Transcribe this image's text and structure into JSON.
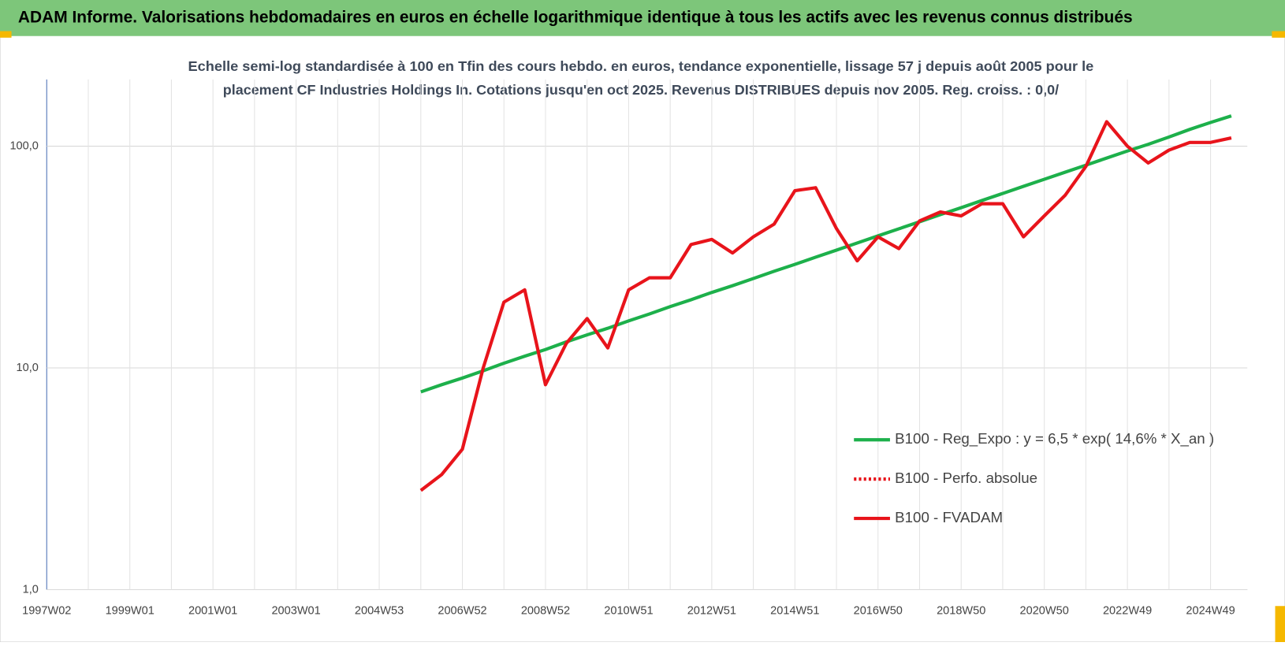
{
  "chart_data": {
    "type": "line",
    "header": "ADAM Informe. Valorisations hebdomadaires en euros en échelle logarithmique identique à tous les actifs avec les revenus connus distribués",
    "subtitle": [
      "Echelle semi-log standardisée à 100 en Tfin des cours hebdo. en euros, tendance exponentielle, lissage 57 j depuis août 2005 pour le",
      "placement CF Industries Holdings In. Cotations jusqu'en oct 2025.  Revenus DISTRIBUES depuis nov 2005. Reg. croiss. : 0,0/"
    ],
    "categories": [
      "1997W02",
      null,
      null,
      null,
      "1999W01",
      null,
      null,
      null,
      "2001W01",
      null,
      null,
      null,
      "2003W01",
      null,
      null,
      null,
      "2004W53",
      null,
      null,
      null,
      "2006W52",
      null,
      null,
      null,
      "2008W52",
      null,
      null,
      null,
      "2010W51",
      null,
      null,
      null,
      "2012W51",
      null,
      null,
      null,
      "2014W51",
      null,
      null,
      null,
      "2016W50",
      null,
      null,
      null,
      "2018W50",
      null,
      null,
      null,
      "2020W50",
      null,
      null,
      null,
      "2022W49",
      null,
      null,
      null,
      "2024W49",
      null
    ],
    "log_scale": true,
    "grid": true,
    "legend": "right",
    "ylim": [
      1,
      200
    ],
    "yticks": [
      {
        "value": 1,
        "label": "1,0"
      },
      {
        "value": 10,
        "label": "10,0"
      },
      {
        "value": 100,
        "label": "100,0"
      }
    ],
    "series": [
      {
        "name": "B100 - Reg_Expo : y = 6,5 * exp( 14,6% *  X_an )",
        "color": "#1db04b",
        "style": "solid",
        "values": [
          null,
          null,
          null,
          null,
          null,
          null,
          null,
          null,
          null,
          null,
          null,
          null,
          null,
          null,
          null,
          null,
          null,
          null,
          7.8,
          8.4,
          9.0,
          9.7,
          10.5,
          11.3,
          12.1,
          13.1,
          14.1,
          15.1,
          16.3,
          17.5,
          18.9,
          20.3,
          21.9,
          23.5,
          25.3,
          27.3,
          29.3,
          31.6,
          34.0,
          36.6,
          39.4,
          42.4,
          45.6,
          49.1,
          52.8,
          56.9,
          61.2,
          65.9,
          70.9,
          76.3,
          82.1,
          88.4,
          95.1,
          102,
          110,
          119,
          128,
          137
        ]
      },
      {
        "name": "B100 - Perfo. absolue",
        "color": "#e8141b",
        "style": "dotted",
        "values": [
          null,
          null,
          null,
          null,
          null,
          null,
          null,
          null,
          null,
          null,
          null,
          null,
          null,
          null,
          null,
          null,
          null,
          null,
          null,
          null,
          null,
          null,
          null,
          null,
          null,
          null,
          null,
          null,
          null,
          null,
          null,
          null,
          null,
          null,
          null,
          null,
          null,
          null,
          null,
          null,
          null,
          null,
          null,
          null,
          null,
          null,
          null,
          null,
          null,
          null,
          null,
          null,
          null,
          null,
          null,
          null,
          null,
          null
        ]
      },
      {
        "name": "B100 - FVADAM",
        "color": "#e8141b",
        "style": "solid",
        "values": [
          null,
          null,
          null,
          null,
          null,
          null,
          null,
          null,
          null,
          null,
          null,
          null,
          null,
          null,
          null,
          null,
          null,
          null,
          2.8,
          3.3,
          4.3,
          10,
          19.8,
          22.5,
          8.4,
          12.9,
          16.7,
          12.3,
          22.5,
          25.5,
          25.5,
          36,
          38,
          33,
          39,
          44.5,
          63,
          65,
          42.5,
          30.4,
          39,
          34.5,
          46,
          50.5,
          48.5,
          55,
          55,
          39,
          48.5,
          60,
          81,
          129,
          100,
          84,
          96,
          104,
          104,
          109
        ]
      }
    ]
  }
}
